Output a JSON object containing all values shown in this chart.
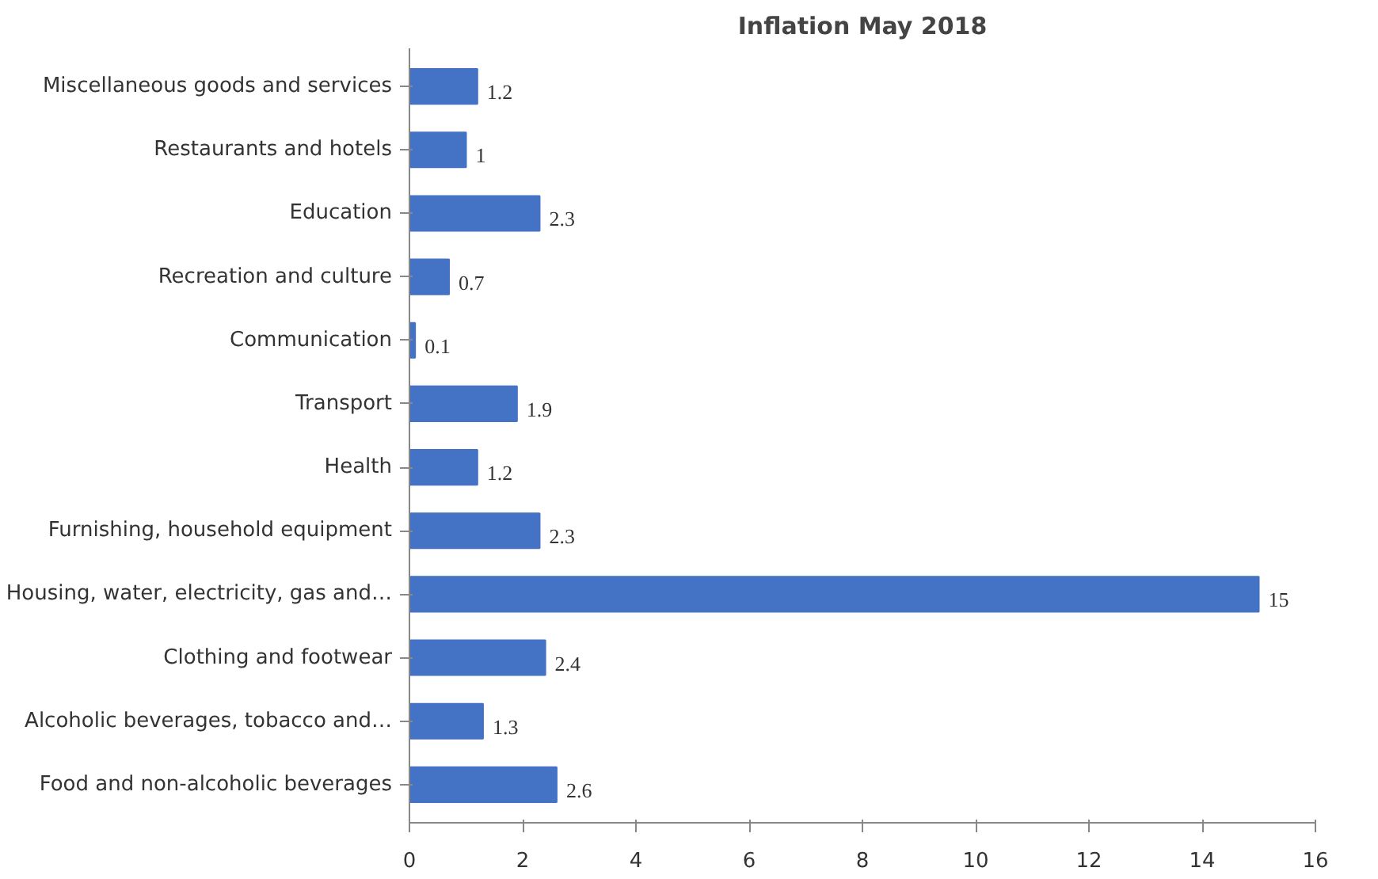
{
  "chart_data": {
    "type": "bar",
    "orientation": "horizontal",
    "title": "Inflation May 2018",
    "categories": [
      "Miscellaneous goods and services",
      "Restaurants and hotels",
      "Education",
      "Recreation and culture",
      "Communication",
      "Transport",
      "Health",
      "Furnishing, household equipment",
      "Housing, water, electricity, gas and…",
      "Clothing and footwear",
      "Alcoholic beverages, tobacco and…",
      "Food and non-alcoholic beverages"
    ],
    "values": [
      1.2,
      1,
      2.3,
      0.7,
      0.1,
      1.9,
      1.2,
      2.3,
      15,
      2.4,
      1.3,
      2.6
    ],
    "color": "#4472c4",
    "data_labels": true,
    "grid": false,
    "xlim": [
      0,
      16
    ],
    "xticks": [
      0,
      2,
      4,
      6,
      8,
      10,
      12,
      14,
      16
    ]
  }
}
